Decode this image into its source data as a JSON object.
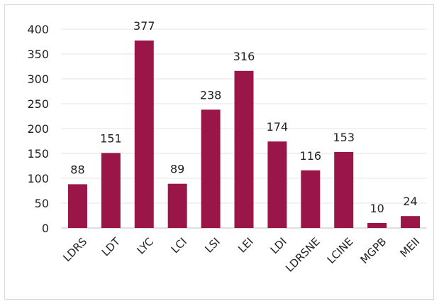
{
  "chart_data": {
    "type": "bar",
    "categories": [
      "LDRS",
      "LDT",
      "LYC",
      "LCI",
      "LSI",
      "LEI",
      "LDI",
      "LDRSNE",
      "LCINE",
      "MGPB",
      "MEII"
    ],
    "values": [
      88,
      151,
      377,
      89,
      238,
      316,
      174,
      116,
      153,
      10,
      24
    ],
    "ylim": [
      0,
      400
    ],
    "yticks": [
      0,
      50,
      100,
      150,
      200,
      250,
      300,
      350,
      400
    ],
    "grid": true,
    "legend": "none",
    "bar_color": "#9b1648"
  }
}
